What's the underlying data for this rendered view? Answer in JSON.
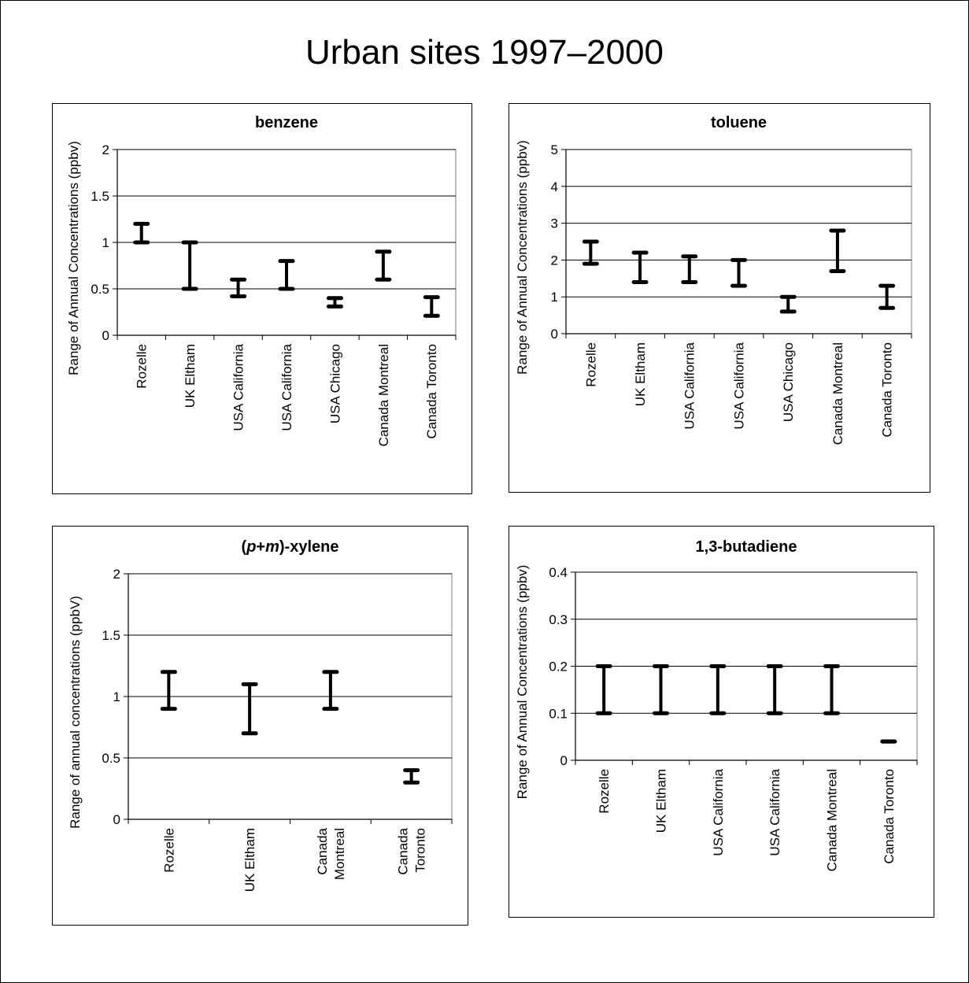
{
  "title": "Urban sites 1997–2000",
  "chart_data": [
    {
      "type": "range",
      "title": "benzene",
      "ylabel": "Range of Annual Concentrations (ppbv)",
      "ylim": [
        0,
        2
      ],
      "yticks": [
        0,
        0.5,
        1,
        1.5,
        2
      ],
      "ytick_labels": [
        "0",
        "0.5",
        "1",
        "1.5",
        "2"
      ],
      "grid": true,
      "categories": [
        [
          "Rozelle"
        ],
        [
          "UK Eltham"
        ],
        [
          "USA California"
        ],
        [
          "USA California"
        ],
        [
          "USA Chicago"
        ],
        [
          "Canada Montreal"
        ],
        [
          "Canada Toronto"
        ]
      ],
      "low": [
        1.0,
        0.5,
        0.42,
        0.5,
        0.31,
        0.6,
        0.21
      ],
      "high": [
        1.2,
        1.0,
        0.6,
        0.8,
        0.4,
        0.9,
        0.41
      ]
    },
    {
      "type": "range",
      "title": "toluene",
      "ylabel": "Range of Annual Concentrations (ppbv)",
      "ylim": [
        0,
        5
      ],
      "yticks": [
        0,
        1,
        2,
        3,
        4,
        5
      ],
      "ytick_labels": [
        "0",
        "1",
        "2",
        "3",
        "4",
        "5"
      ],
      "grid": true,
      "categories": [
        [
          "Rozelle"
        ],
        [
          "UK Eltham"
        ],
        [
          "USA California"
        ],
        [
          "USA California"
        ],
        [
          "USA Chicago"
        ],
        [
          "Canada Montreal"
        ],
        [
          "Canada Toronto"
        ]
      ],
      "low": [
        1.9,
        1.4,
        1.4,
        1.3,
        0.6,
        1.7,
        0.7
      ],
      "high": [
        2.5,
        2.2,
        2.1,
        2.0,
        1.0,
        2.8,
        1.3
      ]
    },
    {
      "type": "range",
      "title_prefix": "(",
      "title_em1": "p",
      "title_mid": "+",
      "title_em2": "m",
      "title_suffix": ")-xylene",
      "ylabel": "Range of annual concentrations (ppbV)",
      "ylim": [
        0,
        2
      ],
      "yticks": [
        0,
        0.5,
        1,
        1.5,
        2
      ],
      "ytick_labels": [
        "0",
        "0.5",
        "1",
        "1.5",
        "2"
      ],
      "grid": true,
      "categories": [
        [
          "Rozelle"
        ],
        [
          "UK Eltham"
        ],
        [
          "Canada",
          "Montreal"
        ],
        [
          "Canada",
          "Toronto"
        ]
      ],
      "low": [
        0.9,
        0.7,
        0.9,
        0.3
      ],
      "high": [
        1.2,
        1.1,
        1.2,
        0.4
      ]
    },
    {
      "type": "range",
      "title": "1,3-butadiene",
      "ylabel": "Range of Annual Concentrations (ppbv)",
      "ylim": [
        0,
        0.4
      ],
      "yticks": [
        0,
        0.1,
        0.2,
        0.3,
        0.4
      ],
      "ytick_labels": [
        "0",
        "0.1",
        "0.2",
        "0.3",
        "0.4"
      ],
      "grid": true,
      "categories": [
        [
          "Rozelle"
        ],
        [
          "UK Eltham"
        ],
        [
          "USA California"
        ],
        [
          "USA California"
        ],
        [
          "Canada Montreal"
        ],
        [
          "Canada Toronto"
        ]
      ],
      "low": [
        0.1,
        0.1,
        0.1,
        0.1,
        0.1,
        0.04
      ],
      "high": [
        0.2,
        0.2,
        0.2,
        0.2,
        0.2,
        0.04
      ]
    }
  ]
}
